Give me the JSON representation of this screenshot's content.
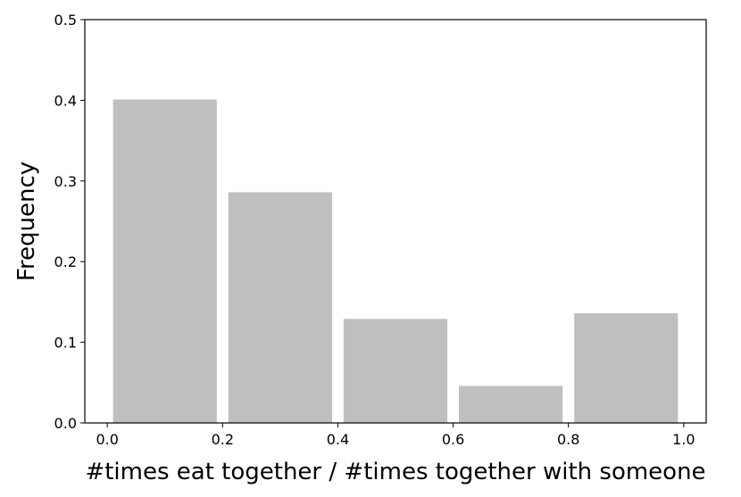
{
  "chart_data": {
    "type": "histogram",
    "xlabel": "#times eat together / #times together with someone",
    "ylabel": "Frequency",
    "bins": [
      0.0,
      0.2,
      0.4,
      0.6,
      0.8,
      1.0
    ],
    "values": [
      0.401,
      0.286,
      0.129,
      0.046,
      0.136
    ],
    "color": "#bfbfbf",
    "xlim": [
      -0.039,
      1.039
    ],
    "ylim": [
      0,
      0.5
    ],
    "xticks": [
      {
        "value": 0,
        "label": "0.0"
      },
      0.2,
      0.4,
      0.6,
      0.8,
      {
        "value": 1,
        "label": "1.0"
      }
    ],
    "yticks": [
      {
        "value": 0,
        "label": "0.0"
      },
      0.1,
      0.2,
      0.3,
      0.4,
      0.5
    ]
  }
}
